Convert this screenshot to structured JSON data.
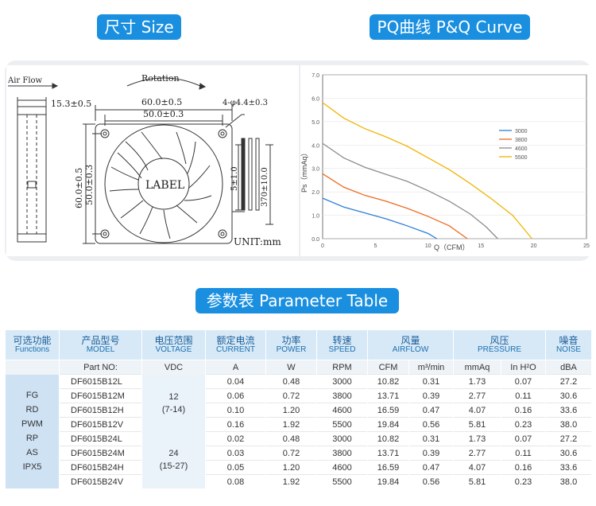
{
  "headings": {
    "size": "尺寸 Size",
    "curve": "PQ曲线 P&Q Curve",
    "param": "参数表 Parameter Table"
  },
  "drawing": {
    "air_flow": "Air Flow",
    "rotation": "Rotation",
    "thickness": "15.3±0.5",
    "outer_w": "60.0±0.5",
    "hole_w": "50.0±0.3",
    "outer_h": "60.0±0.5",
    "hole_h": "50.0±0.3",
    "hole_dia": "4-φ4.4±0.3",
    "lead_strip": "5±1.0",
    "lead_len": "370±10.0",
    "label": "LABEL",
    "unit": "UNIT:mm"
  },
  "chart_data": {
    "type": "line",
    "xlabel": "Q（CFM）",
    "ylabel": "Ps（mmAq）",
    "xlim": [
      0,
      25
    ],
    "ylim": [
      0,
      7
    ],
    "x_ticks": [
      "0",
      "5",
      "10",
      "15",
      "20",
      "25"
    ],
    "y_ticks": [
      "0.0",
      "1.0",
      "2.0",
      "3.0",
      "4.0",
      "5.0",
      "6.0",
      "7.0"
    ],
    "legend_position": "center-right",
    "series": [
      {
        "name": "3000",
        "color": "#2e7fd6",
        "points": [
          [
            0,
            1.73
          ],
          [
            2,
            1.35
          ],
          [
            4,
            1.1
          ],
          [
            6,
            0.85
          ],
          [
            8,
            0.55
          ],
          [
            10,
            0.22
          ],
          [
            10.82,
            0
          ]
        ]
      },
      {
        "name": "3800",
        "color": "#ee6a1e",
        "points": [
          [
            0,
            2.77
          ],
          [
            2,
            2.2
          ],
          [
            4,
            1.85
          ],
          [
            6,
            1.6
          ],
          [
            8,
            1.3
          ],
          [
            10,
            0.95
          ],
          [
            12,
            0.55
          ],
          [
            13.71,
            0
          ]
        ]
      },
      {
        "name": "4600",
        "color": "#8c8c8c",
        "points": [
          [
            0,
            4.07
          ],
          [
            2,
            3.45
          ],
          [
            4,
            3.05
          ],
          [
            6,
            2.75
          ],
          [
            8,
            2.45
          ],
          [
            10,
            2.05
          ],
          [
            12,
            1.6
          ],
          [
            14,
            1.05
          ],
          [
            15.5,
            0.5
          ],
          [
            16.59,
            0
          ]
        ]
      },
      {
        "name": "5500",
        "color": "#f0b400",
        "points": [
          [
            0,
            5.81
          ],
          [
            2,
            5.15
          ],
          [
            4,
            4.7
          ],
          [
            6,
            4.35
          ],
          [
            8,
            3.95
          ],
          [
            10,
            3.45
          ],
          [
            12,
            2.95
          ],
          [
            14,
            2.35
          ],
          [
            16,
            1.7
          ],
          [
            18,
            1.0
          ],
          [
            19.84,
            0
          ]
        ]
      }
    ]
  },
  "table": {
    "headers": [
      {
        "cn": "可选功能",
        "en": "Functions"
      },
      {
        "cn": "产品型号",
        "en": "MODEL"
      },
      {
        "cn": "电压范围",
        "en": "VOLTAGE"
      },
      {
        "cn": "额定电流",
        "en": "CURRENT"
      },
      {
        "cn": "功率",
        "en": "POWER"
      },
      {
        "cn": "转速",
        "en": "SPEED"
      },
      {
        "cn": "风量",
        "en": "AIRFLOW"
      },
      {
        "cn": "风压",
        "en": "PRESSURE"
      },
      {
        "cn": "噪音",
        "en": "NOISE"
      }
    ],
    "units": [
      "Part NO:",
      "VDC",
      "A",
      "W",
      "RPM",
      "CFM",
      "m³/min",
      "mmAq",
      "In H²O",
      "dBA"
    ],
    "functions": [
      "FG",
      "RD",
      "PWM",
      "RP",
      "AS",
      "IPX5"
    ],
    "voltage_groups": [
      {
        "nominal": "12",
        "range": "(7-14)"
      },
      {
        "nominal": "24",
        "range": "(15-27)"
      }
    ],
    "rows": [
      [
        "DF6015B12L",
        "0.04",
        "0.48",
        "3000",
        "10.82",
        "0.31",
        "1.73",
        "0.07",
        "27.2"
      ],
      [
        "DF6015B12M",
        "0.06",
        "0.72",
        "3800",
        "13.71",
        "0.39",
        "2.77",
        "0.11",
        "30.6"
      ],
      [
        "DF6015B12H",
        "0.10",
        "1.20",
        "4600",
        "16.59",
        "0.47",
        "4.07",
        "0.16",
        "33.6"
      ],
      [
        "DF6015B12V",
        "0.16",
        "1.92",
        "5500",
        "19.84",
        "0.56",
        "5.81",
        "0.23",
        "38.0"
      ],
      [
        "DF6015B24L",
        "0.02",
        "0.48",
        "3000",
        "10.82",
        "0.31",
        "1.73",
        "0.07",
        "27.2"
      ],
      [
        "DF6015B24M",
        "0.03",
        "0.72",
        "3800",
        "13.71",
        "0.39",
        "2.77",
        "0.11",
        "30.6"
      ],
      [
        "DF6015B24H",
        "0.05",
        "1.20",
        "4600",
        "16.59",
        "0.47",
        "4.07",
        "0.16",
        "33.6"
      ],
      [
        "DF6015B24V",
        "0.08",
        "1.92",
        "5500",
        "19.84",
        "0.56",
        "5.81",
        "0.23",
        "38.0"
      ]
    ]
  }
}
